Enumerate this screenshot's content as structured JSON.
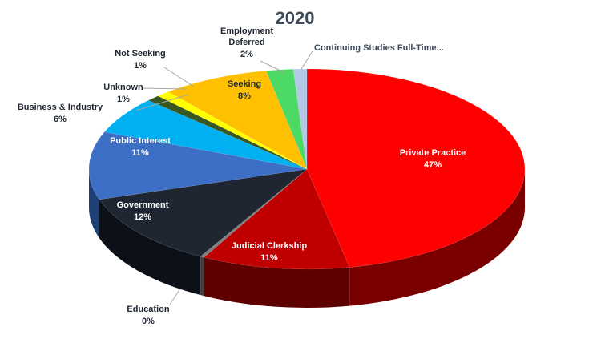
{
  "chart_data": {
    "type": "pie",
    "title": "2020",
    "slices": [
      {
        "label": "Private Practice",
        "pct_label": "47%",
        "value": 47,
        "color": "#ff0000",
        "side": "#7a0000"
      },
      {
        "label": "Judicial Clerkship",
        "pct_label": "11%",
        "value": 11,
        "color": "#c00000",
        "side": "#5e0000"
      },
      {
        "label": "Education",
        "pct_label": "0%",
        "value": 0.3,
        "color": "#7f7f7f",
        "side": "#3f3f3f"
      },
      {
        "label": "Government",
        "pct_label": "12%",
        "value": 12,
        "color": "#1f2632",
        "side": "#0c1018"
      },
      {
        "label": "Public Interest",
        "pct_label": "11%",
        "value": 11,
        "color": "#3e6fc6",
        "side": "#1f3f77"
      },
      {
        "label": "Business & Industry",
        "pct_label": "6%",
        "value": 6,
        "color": "#00b0f0",
        "side": "#006c93"
      },
      {
        "label": "Unknown",
        "pct_label": "1%",
        "value": 1,
        "color": "#385723",
        "side": "#1c2c12"
      },
      {
        "label": "Not Seeking",
        "pct_label": "1%",
        "value": 1,
        "color": "#ffff00",
        "side": "#8c8c00"
      },
      {
        "label": "Seeking",
        "pct_label": "8%",
        "value": 8,
        "color": "#ffc000",
        "side": "#8a6800"
      },
      {
        "label": "Employment Deferred",
        "pct_label": "2%",
        "value": 2,
        "color": "#4cd964",
        "side": "#237a33"
      },
      {
        "label": "Continuing Studies Full-Time...",
        "pct_label": "",
        "value": 1,
        "color": "#b4c7e7",
        "side": "#6d7f9c"
      }
    ],
    "legend": "none"
  }
}
